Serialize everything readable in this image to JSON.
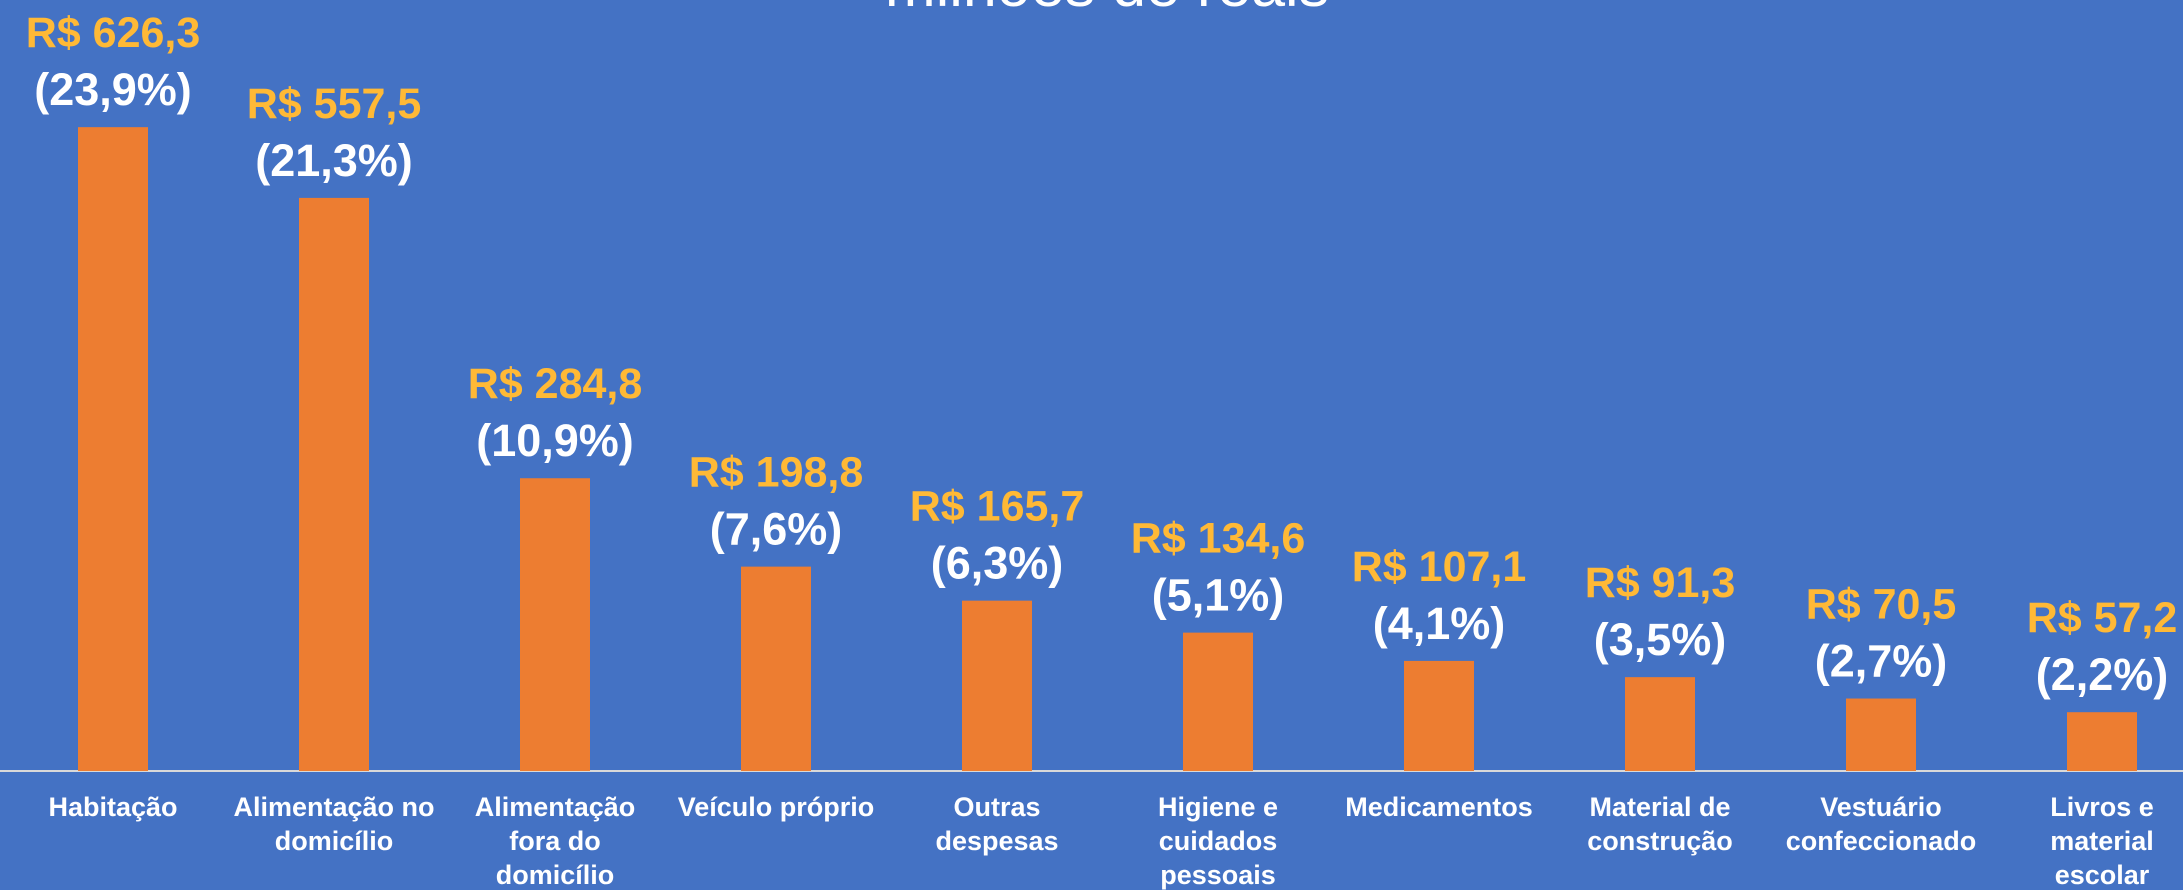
{
  "chart_data": {
    "type": "bar",
    "title": "milhões de reais",
    "categories": [
      "Habitação",
      "Alimentação no\ndomicílio",
      "Alimentação\nfora do\ndomicílio",
      "Veículo próprio",
      "Outras\ndespesas",
      "Higiene e\ncuidados\npessoais",
      "Medicamentos",
      "Material de\nconstrução",
      "Vestuário\nconfeccionado",
      "Livros e\nmaterial\nescolar"
    ],
    "values": [
      626.3,
      557.5,
      284.8,
      198.8,
      165.7,
      134.6,
      107.1,
      91.3,
      70.5,
      57.2
    ],
    "value_labels": [
      "R$ 626,3",
      "R$ 557,5",
      "R$ 284,8",
      "R$ 198,8",
      "R$ 165,7",
      "R$ 134,6",
      "R$ 107,1",
      "R$ 91,3",
      "R$ 70,5",
      "R$ 57,2"
    ],
    "percent_labels": [
      "(23,9%)",
      "(21,3%)",
      "(10,9%)",
      "(7,6%)",
      "(6,3%)",
      "(5,1%)",
      "(4,1%)",
      "(3,5%)",
      "(2,7%)",
      "(2,2%)"
    ],
    "color": "#ed7d31",
    "value_label_color": "#ffb936",
    "background": "#4472c4",
    "ylim": [
      0,
      750
    ],
    "grid": false
  }
}
